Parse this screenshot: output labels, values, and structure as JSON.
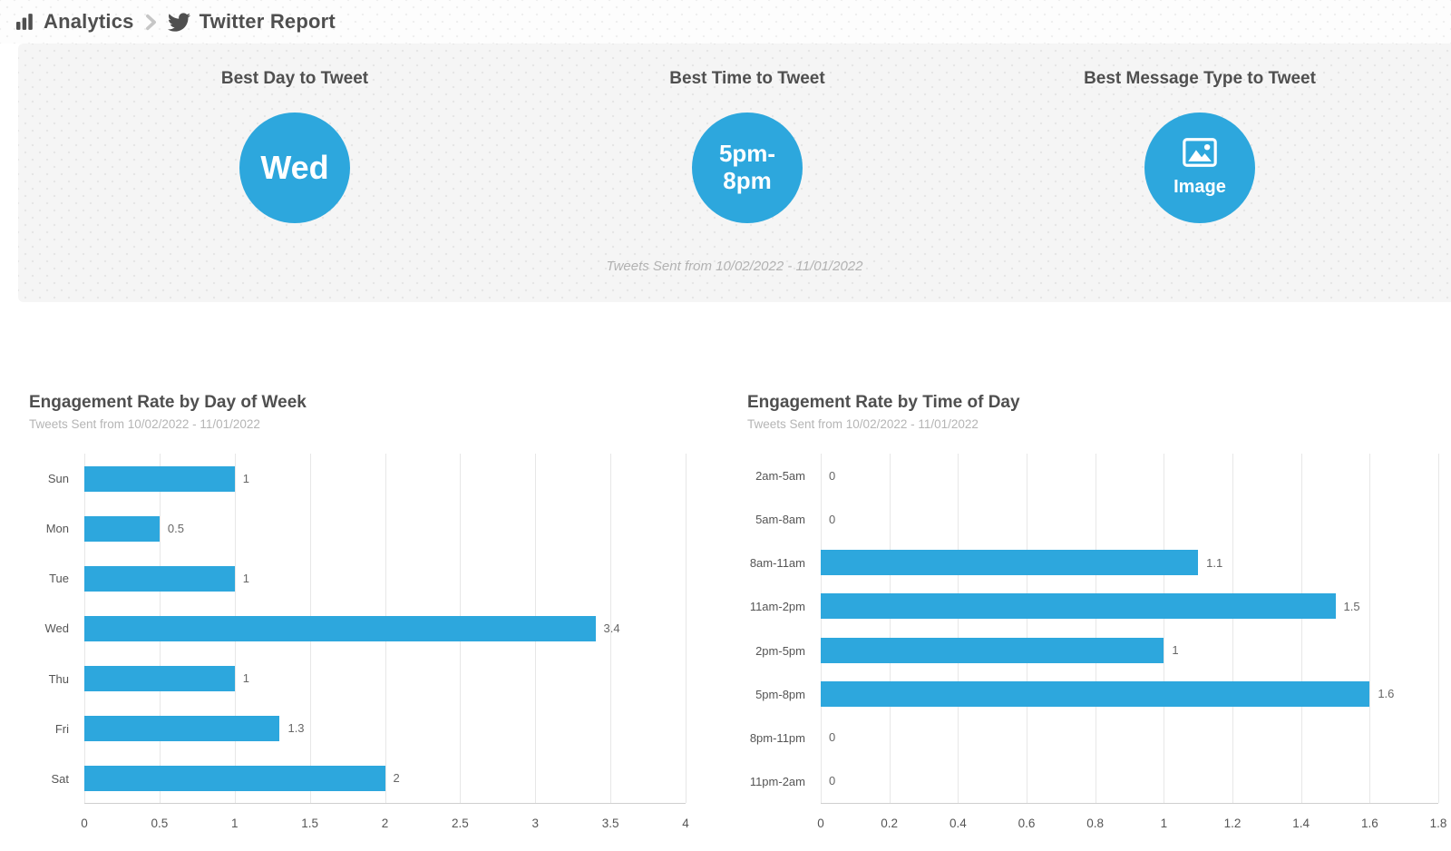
{
  "colors": {
    "accent": "#2DA7DD",
    "heading_text": "#4f4f4f",
    "muted_text": "#b2b2b2"
  },
  "breadcrumb": {
    "section_icon": "bar-chart-icon",
    "section": "Analytics",
    "separator_icon": "chevron-right-icon",
    "page_icon": "twitter-icon",
    "page": "Twitter Report"
  },
  "summary": {
    "cards": [
      {
        "heading": "Best Day to Tweet",
        "value": "Wed"
      },
      {
        "heading": "Best Time to Tweet",
        "value": "5pm-\n8pm"
      },
      {
        "heading": "Best Message Type to Tweet",
        "value": "Image",
        "icon": "image-icon"
      }
    ],
    "caption": "Tweets Sent from 10/02/2022 - 11/01/2022"
  },
  "chart_data": [
    {
      "type": "bar",
      "orientation": "horizontal",
      "title": "Engagement Rate by Day of Week",
      "subtitle": "Tweets Sent from 10/02/2022 - 11/01/2022",
      "categories": [
        "Sun",
        "Mon",
        "Tue",
        "Wed",
        "Thu",
        "Fri",
        "Sat"
      ],
      "values": [
        1,
        0.5,
        1,
        3.4,
        1,
        1.3,
        2
      ],
      "value_labels": [
        "1",
        "0.5",
        "1",
        "3.4",
        "1",
        "1.3",
        "2"
      ],
      "xlim": [
        0,
        4
      ],
      "xticks": [
        0,
        0.5,
        1,
        1.5,
        2,
        2.5,
        3,
        3.5,
        4
      ],
      "xtick_labels": [
        "0",
        "0.5",
        "1",
        "1.5",
        "2",
        "2.5",
        "3",
        "3.5",
        "4"
      ],
      "grid": true,
      "legend": false
    },
    {
      "type": "bar",
      "orientation": "horizontal",
      "title": "Engagement Rate by Time of Day",
      "subtitle": "Tweets Sent from 10/02/2022 - 11/01/2022",
      "categories": [
        "2am-5am",
        "5am-8am",
        "8am-11am",
        "11am-2pm",
        "2pm-5pm",
        "5pm-8pm",
        "8pm-11pm",
        "11pm-2am"
      ],
      "values": [
        0,
        0,
        1.1,
        1.5,
        1,
        1.6,
        0,
        0
      ],
      "value_labels": [
        "0",
        "0",
        "1.1",
        "1.5",
        "1",
        "1.6",
        "0",
        "0"
      ],
      "xlim": [
        0,
        1.8
      ],
      "xticks": [
        0,
        0.2,
        0.4,
        0.6,
        0.8,
        1,
        1.2,
        1.4,
        1.6,
        1.8
      ],
      "xtick_labels": [
        "0",
        "0.2",
        "0.4",
        "0.6",
        "0.8",
        "1",
        "1.2",
        "1.4",
        "1.6",
        "1.8"
      ],
      "grid": true,
      "legend": false
    }
  ]
}
